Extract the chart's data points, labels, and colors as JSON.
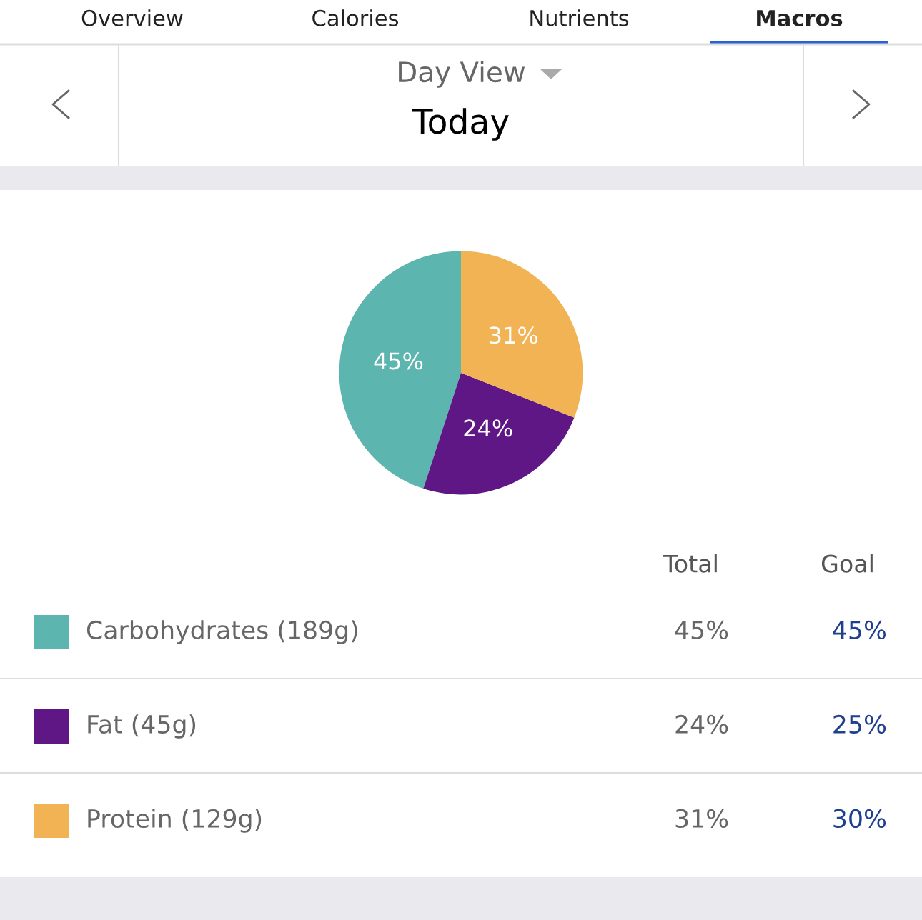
{
  "chart_data": {
    "type": "pie",
    "title": "Today",
    "subtitle": "Day View",
    "categories": [
      "Carbohydrates (189g)",
      "Fat (45g)",
      "Protein (129g)"
    ],
    "values": [
      45,
      24,
      31
    ],
    "colors": [
      "#5cb5ae",
      "#5e1785",
      "#f2b354"
    ],
    "value_labels": [
      "45%",
      "24%",
      "31%"
    ],
    "legend": "bottom",
    "annotations": [
      "Overview",
      "Calories",
      "Nutrients",
      "Macros",
      "Total",
      "Goal",
      "45%",
      "25%",
      "30%"
    ]
  }
}
